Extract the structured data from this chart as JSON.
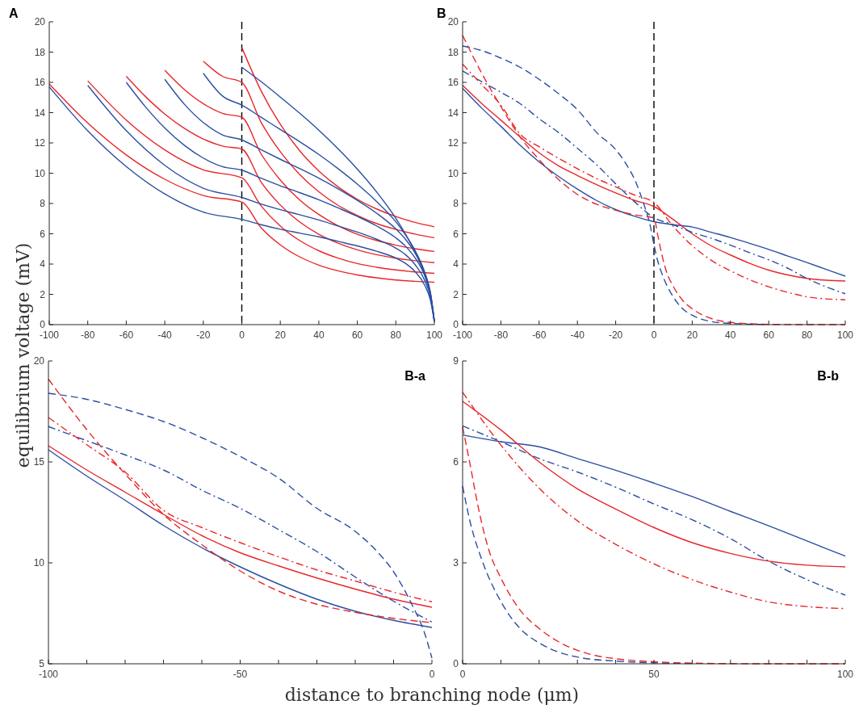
{
  "chart_data": [
    {
      "type": "line",
      "title": "A",
      "ylabel": "equilibrium voltage (mV)",
      "xlim": [
        -100,
        100
      ],
      "ylim": [
        0,
        20
      ],
      "xticks": [
        -100,
        -80,
        -60,
        -40,
        -20,
        0,
        20,
        40,
        60,
        80,
        100
      ],
      "yticks": [
        0,
        2,
        4,
        6,
        8,
        10,
        12,
        14,
        16,
        18,
        20
      ],
      "grid": false,
      "ref_lines": [
        {
          "axis": "x",
          "value": 0,
          "color": "#000000",
          "line_style": "dashed"
        }
      ],
      "series": [
        {
          "color": "#e8272a",
          "line_style": "solid",
          "x": [
            -100,
            -80,
            -60,
            -40,
            -20,
            0,
            10,
            20,
            30,
            40,
            50,
            60,
            70,
            80,
            90,
            100
          ],
          "values": [
            15.9,
            13.32,
            11.21,
            9.6,
            8.53,
            8.1,
            6.4,
            5.27,
            4.48,
            3.93,
            3.55,
            3.28,
            3.09,
            2.95,
            2.86,
            2.8
          ]
        },
        {
          "color": "#e8272a",
          "line_style": "solid",
          "x": [
            -80,
            -60,
            -40,
            -20,
            0,
            10,
            20,
            30,
            40,
            50,
            60,
            70,
            80,
            90,
            100
          ],
          "values": [
            16.1,
            13.51,
            11.54,
            10.22,
            9.7,
            7.85,
            6.51,
            5.56,
            4.88,
            4.39,
            4.03,
            3.79,
            3.61,
            3.48,
            3.39
          ]
        },
        {
          "color": "#e8272a",
          "line_style": "solid",
          "x": [
            -60,
            -50,
            -40,
            -30,
            -20,
            -10,
            0,
            10,
            20,
            30,
            40,
            50,
            60,
            70,
            80,
            90,
            100
          ],
          "values": [
            16.4,
            15.06,
            13.91,
            12.98,
            12.26,
            11.79,
            11.6,
            9.42,
            7.9,
            6.79,
            5.97,
            5.38,
            4.94,
            4.62,
            4.39,
            4.22,
            4.09
          ]
        },
        {
          "color": "#e8272a",
          "line_style": "solid",
          "x": [
            -40,
            -30,
            -20,
            -10,
            0,
            10,
            20,
            30,
            40,
            50,
            60,
            70,
            80,
            90,
            100
          ],
          "values": [
            16.8,
            15.55,
            14.59,
            13.95,
            13.7,
            11.28,
            9.55,
            8.24,
            7.27,
            6.53,
            5.97,
            5.56,
            5.25,
            5.01,
            4.83
          ]
        },
        {
          "color": "#e8272a",
          "line_style": "solid",
          "x": [
            -20,
            -10,
            0,
            10,
            20,
            30,
            40,
            50,
            60,
            70,
            80,
            90,
            100
          ],
          "values": [
            17.4,
            16.4,
            16.0,
            13.37,
            11.42,
            9.92,
            8.77,
            7.88,
            7.21,
            6.68,
            6.29,
            5.98,
            5.74
          ]
        },
        {
          "color": "#e8272a",
          "line_style": "solid",
          "x": [
            0,
            10,
            20,
            30,
            40,
            50,
            60,
            70,
            80,
            90,
            100
          ],
          "values": [
            18.3,
            15.45,
            13.23,
            11.49,
            10.15,
            9.1,
            8.28,
            7.64,
            7.14,
            6.75,
            6.46
          ]
        },
        {
          "color": "#2a4fa3",
          "line_style": "solid",
          "x": [
            -100,
            -80,
            -60,
            -40,
            -20,
            0,
            10,
            20,
            30,
            40,
            50,
            60,
            70,
            80,
            85,
            90,
            95,
            98,
            100
          ],
          "values": [
            15.7,
            12.8,
            10.44,
            8.63,
            7.43,
            6.95,
            6.6,
            6.3,
            6.05,
            5.8,
            5.5,
            5.2,
            4.85,
            4.4,
            4.05,
            3.5,
            2.6,
            1.6,
            0.2
          ]
        },
        {
          "color": "#2a4fa3",
          "line_style": "solid",
          "x": [
            -80,
            -60,
            -40,
            -20,
            0,
            10,
            20,
            30,
            40,
            50,
            60,
            70,
            80,
            85,
            90,
            95,
            98,
            100
          ],
          "values": [
            15.8,
            12.81,
            10.52,
            9.01,
            8.4,
            7.97,
            7.59,
            7.26,
            6.91,
            6.51,
            6.11,
            5.64,
            5.05,
            4.62,
            3.96,
            2.92,
            1.8,
            0.23
          ]
        },
        {
          "color": "#2a4fa3",
          "line_style": "solid",
          "x": [
            -60,
            -50,
            -40,
            -30,
            -20,
            -10,
            0,
            10,
            20,
            30,
            40,
            50,
            60,
            70,
            80,
            85,
            90,
            95,
            98,
            100
          ],
          "values": [
            16.0,
            14.38,
            12.99,
            11.86,
            11.0,
            10.43,
            10.2,
            9.67,
            9.17,
            8.72,
            8.25,
            7.71,
            7.15,
            6.52,
            5.73,
            5.18,
            4.41,
            3.22,
            1.97,
            0.24
          ]
        },
        {
          "color": "#2a4fa3",
          "line_style": "solid",
          "x": [
            -40,
            -30,
            -20,
            -10,
            0,
            10,
            20,
            30,
            40,
            50,
            60,
            70,
            80,
            85,
            90,
            95,
            98,
            100
          ],
          "values": [
            16.2,
            14.58,
            13.35,
            12.53,
            12.2,
            11.55,
            10.92,
            10.31,
            9.67,
            8.97,
            8.21,
            7.36,
            6.32,
            5.64,
            4.73,
            3.42,
            2.07,
            0.24
          ]
        },
        {
          "color": "#2a4fa3",
          "line_style": "solid",
          "x": [
            -20,
            -10,
            0,
            10,
            20,
            30,
            40,
            50,
            60,
            70,
            80,
            85,
            90,
            95,
            98,
            100
          ],
          "values": [
            16.6,
            15.1,
            14.5,
            13.7,
            12.89,
            12.09,
            11.24,
            10.3,
            9.28,
            8.13,
            6.79,
            5.93,
            4.89,
            3.45,
            2.09,
            0.23
          ]
        },
        {
          "color": "#2a4fa3",
          "line_style": "solid",
          "x": [
            0,
            10,
            20,
            30,
            40,
            50,
            60,
            70,
            80,
            85,
            90,
            95,
            98,
            100
          ],
          "values": [
            17.0,
            16.05,
            15.03,
            13.97,
            12.84,
            11.61,
            10.27,
            8.77,
            7.02,
            5.98,
            4.79,
            3.28,
            1.97,
            0.2
          ]
        }
      ]
    },
    {
      "type": "line",
      "title": "B",
      "xlim": [
        -100,
        100
      ],
      "ylim": [
        0,
        20
      ],
      "xticks": [
        -100,
        -80,
        -60,
        -40,
        -20,
        0,
        20,
        40,
        60,
        80,
        100
      ],
      "yticks": [
        0,
        2,
        4,
        6,
        8,
        10,
        12,
        14,
        16,
        18,
        20
      ],
      "grid": false,
      "ref_lines": [
        {
          "axis": "x",
          "value": 0,
          "color": "#000000",
          "line_style": "dashed"
        }
      ],
      "series": [
        {
          "color": "#2a4fa3",
          "line_style": "solid",
          "x": [
            -100,
            -90,
            -80,
            -70,
            -60,
            -50,
            -40,
            -30,
            -20,
            -10,
            0,
            10,
            20,
            30,
            40,
            50,
            60,
            70,
            80,
            90,
            100
          ],
          "values": [
            15.6,
            14.3,
            13.1,
            11.85,
            10.75,
            9.8,
            8.95,
            8.2,
            7.6,
            7.15,
            6.8,
            6.6,
            6.45,
            6.1,
            5.75,
            5.37,
            4.97,
            4.53,
            4.1,
            3.65,
            3.2
          ]
        },
        {
          "color": "#e8272a",
          "line_style": "solid",
          "x": [
            -100,
            -90,
            -80,
            -70,
            -60,
            -50,
            -40,
            -30,
            -20,
            -10,
            0,
            10,
            20,
            30,
            40,
            50,
            60,
            70,
            80,
            90,
            100
          ],
          "values": [
            15.8,
            14.6,
            13.5,
            12.4,
            11.35,
            10.5,
            9.85,
            9.25,
            8.7,
            8.2,
            7.8,
            6.95,
            6.0,
            5.2,
            4.6,
            4.05,
            3.6,
            3.28,
            3.05,
            2.93,
            2.88
          ]
        },
        {
          "color": "#2a4fa3",
          "line_style": "dashed",
          "x": [
            -100,
            -90,
            -80,
            -70,
            -60,
            -50,
            -40,
            -30,
            -20,
            -15,
            -10,
            -5,
            -2,
            0,
            2,
            5,
            10,
            15,
            20,
            25,
            30,
            40,
            50,
            60
          ],
          "values": [
            18.4,
            18.1,
            17.6,
            17.0,
            16.2,
            15.27,
            14.2,
            12.7,
            11.56,
            10.7,
            9.56,
            7.85,
            6.57,
            5.28,
            4.2,
            3.1,
            1.85,
            1.05,
            0.62,
            0.35,
            0.2,
            0.08,
            0.03,
            0.01
          ]
        },
        {
          "color": "#e8272a",
          "line_style": "dashed",
          "x": [
            -100,
            -90,
            -80,
            -70,
            -60,
            -50,
            -40,
            -30,
            -20,
            -10,
            0,
            2,
            4,
            7,
            10,
            15,
            20,
            25,
            30,
            35,
            40,
            50,
            60,
            80,
            100
          ],
          "values": [
            19.1,
            16.6,
            14.4,
            12.4,
            10.9,
            9.6,
            8.6,
            7.95,
            7.55,
            7.25,
            7.04,
            5.9,
            4.7,
            3.33,
            2.55,
            1.6,
            1.05,
            0.66,
            0.4,
            0.24,
            0.15,
            0.06,
            0.02,
            0,
            0
          ]
        },
        {
          "color": "#2a4fa3",
          "line_style": "dashdot",
          "x": [
            -100,
            -90,
            -80,
            -70,
            -60,
            -50,
            -40,
            -30,
            -20,
            -10,
            0,
            10,
            20,
            30,
            40,
            50,
            60,
            70,
            80,
            90,
            100
          ],
          "values": [
            16.75,
            16.05,
            15.35,
            14.6,
            13.6,
            12.7,
            11.65,
            10.56,
            9.3,
            8.1,
            7.07,
            6.6,
            6.1,
            5.7,
            5.25,
            4.75,
            4.28,
            3.72,
            3.05,
            2.5,
            2.04
          ]
        },
        {
          "color": "#e8272a",
          "line_style": "dashdot",
          "x": [
            -100,
            -90,
            -80,
            -70,
            -60,
            -50,
            -40,
            -30,
            -20,
            -10,
            0,
            10,
            20,
            30,
            40,
            50,
            60,
            70,
            80,
            90,
            100
          ],
          "values": [
            17.2,
            15.85,
            14.5,
            12.6,
            11.75,
            11.0,
            10.3,
            9.65,
            9.1,
            8.55,
            8.07,
            6.5,
            5.22,
            4.25,
            3.55,
            2.97,
            2.5,
            2.13,
            1.84,
            1.7,
            1.64
          ]
        }
      ]
    },
    {
      "type": "line",
      "title": "B-a",
      "xlabel": "distance to branching node (μm)",
      "xlim": [
        -100,
        0
      ],
      "ylim": [
        5,
        20
      ],
      "xticks": [
        -100,
        {
          "value": -90,
          "label": null
        },
        {
          "value": -80,
          "label": null
        },
        {
          "value": -70,
          "label": null
        },
        {
          "value": -60,
          "label": null
        },
        -50,
        {
          "value": -40,
          "label": null
        },
        {
          "value": -30,
          "label": null
        },
        {
          "value": -20,
          "label": null
        },
        {
          "value": -10,
          "label": null
        },
        0
      ],
      "yticks": [
        5,
        10,
        15,
        20
      ],
      "grid": false,
      "series": [
        {
          "color": "#2a4fa3",
          "line_style": "solid",
          "x": [
            -100,
            -90,
            -80,
            -70,
            -60,
            -50,
            -40,
            -30,
            -20,
            -10,
            0
          ],
          "values": [
            15.6,
            14.3,
            13.1,
            11.85,
            10.75,
            9.8,
            8.95,
            8.2,
            7.6,
            7.15,
            6.8
          ]
        },
        {
          "color": "#e8272a",
          "line_style": "solid",
          "x": [
            -100,
            -90,
            -80,
            -70,
            -60,
            -50,
            -40,
            -30,
            -20,
            -10,
            0
          ],
          "values": [
            15.8,
            14.6,
            13.5,
            12.4,
            11.35,
            10.5,
            9.85,
            9.25,
            8.7,
            8.2,
            7.8
          ]
        },
        {
          "color": "#2a4fa3",
          "line_style": "dashed",
          "x": [
            -100,
            -90,
            -80,
            -70,
            -60,
            -50,
            -40,
            -30,
            -20,
            -15,
            -10,
            -5,
            -2,
            0
          ],
          "values": [
            18.4,
            18.1,
            17.6,
            17.0,
            16.2,
            15.27,
            14.2,
            12.7,
            11.56,
            10.7,
            9.56,
            7.85,
            6.57,
            5.28
          ]
        },
        {
          "color": "#e8272a",
          "line_style": "dashed",
          "x": [
            -100,
            -90,
            -80,
            -70,
            -60,
            -50,
            -40,
            -30,
            -20,
            -10,
            0
          ],
          "values": [
            19.1,
            16.6,
            14.4,
            12.4,
            10.9,
            9.6,
            8.6,
            7.95,
            7.55,
            7.25,
            7.04
          ]
        },
        {
          "color": "#2a4fa3",
          "line_style": "dashdot",
          "x": [
            -100,
            -90,
            -80,
            -70,
            -60,
            -50,
            -40,
            -30,
            -20,
            -10,
            0
          ],
          "values": [
            16.75,
            16.05,
            15.35,
            14.6,
            13.6,
            12.7,
            11.65,
            10.56,
            9.3,
            8.1,
            7.07
          ]
        },
        {
          "color": "#e8272a",
          "line_style": "dashdot",
          "x": [
            -100,
            -90,
            -80,
            -70,
            -60,
            -50,
            -40,
            -30,
            -20,
            -10,
            0
          ],
          "values": [
            17.2,
            15.85,
            14.5,
            12.6,
            11.75,
            11.0,
            10.3,
            9.65,
            9.1,
            8.55,
            8.07
          ]
        }
      ]
    },
    {
      "type": "line",
      "title": "B-b",
      "xlim": [
        0,
        100
      ],
      "ylim": [
        0,
        9
      ],
      "xticks": [
        0,
        {
          "value": 10,
          "label": null
        },
        {
          "value": 20,
          "label": null
        },
        {
          "value": 30,
          "label": null
        },
        {
          "value": 40,
          "label": null
        },
        50,
        {
          "value": 60,
          "label": null
        },
        {
          "value": 70,
          "label": null
        },
        {
          "value": 80,
          "label": null
        },
        {
          "value": 90,
          "label": null
        },
        100
      ],
      "yticks": [
        0,
        3,
        6,
        9
      ],
      "grid": false,
      "series": [
        {
          "color": "#2a4fa3",
          "line_style": "solid",
          "x": [
            0,
            10,
            20,
            30,
            40,
            50,
            60,
            70,
            80,
            90,
            100
          ],
          "values": [
            6.8,
            6.6,
            6.45,
            6.1,
            5.75,
            5.37,
            4.97,
            4.53,
            4.1,
            3.65,
            3.2
          ]
        },
        {
          "color": "#e8272a",
          "line_style": "solid",
          "x": [
            0,
            10,
            20,
            30,
            40,
            50,
            60,
            70,
            80,
            90,
            100
          ],
          "values": [
            7.8,
            6.95,
            6.0,
            5.2,
            4.6,
            4.05,
            3.6,
            3.28,
            3.05,
            2.93,
            2.88
          ]
        },
        {
          "color": "#2a4fa3",
          "line_style": "dashed",
          "x": [
            0,
            2,
            5,
            10,
            15,
            20,
            25,
            30,
            40,
            50,
            60
          ],
          "values": [
            5.28,
            4.2,
            3.1,
            1.85,
            1.05,
            0.62,
            0.35,
            0.2,
            0.08,
            0.03,
            0.01
          ]
        },
        {
          "color": "#e8272a",
          "line_style": "dashed",
          "x": [
            0,
            2,
            4,
            7,
            10,
            15,
            20,
            25,
            30,
            35,
            40,
            50,
            60,
            80,
            100
          ],
          "values": [
            7.04,
            5.9,
            4.7,
            3.33,
            2.55,
            1.6,
            1.05,
            0.66,
            0.4,
            0.24,
            0.15,
            0.06,
            0.02,
            0,
            0
          ]
        },
        {
          "color": "#2a4fa3",
          "line_style": "dashdot",
          "x": [
            0,
            10,
            20,
            30,
            40,
            50,
            60,
            70,
            80,
            90,
            100
          ],
          "values": [
            7.07,
            6.6,
            6.1,
            5.7,
            5.25,
            4.75,
            4.28,
            3.72,
            3.05,
            2.5,
            2.04
          ]
        },
        {
          "color": "#e8272a",
          "line_style": "dashdot",
          "x": [
            0,
            10,
            20,
            30,
            40,
            50,
            60,
            70,
            80,
            90,
            100
          ],
          "values": [
            8.07,
            6.5,
            5.22,
            4.25,
            3.55,
            2.97,
            2.5,
            2.13,
            1.84,
            1.7,
            1.64
          ]
        }
      ]
    }
  ]
}
